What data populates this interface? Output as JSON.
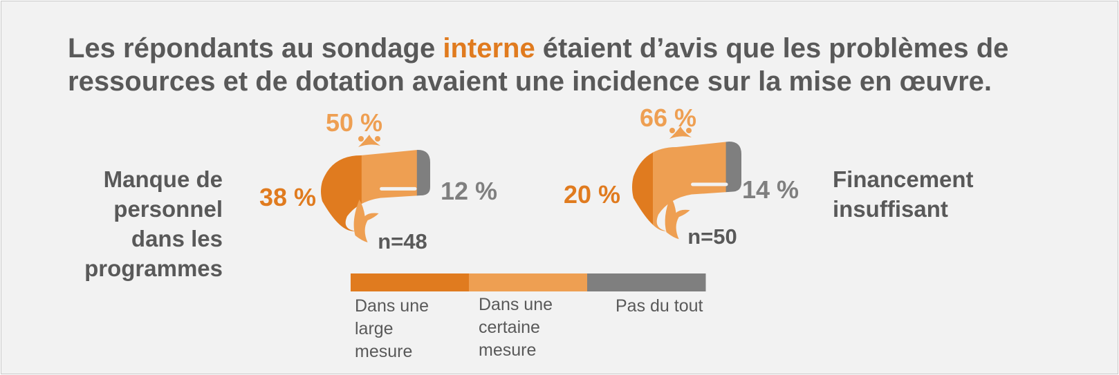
{
  "title": {
    "part1": "Les répondants au sondage ",
    "highlight": "interne",
    "part2": " étaient d’avis que les problèmes de ressources et de dotation avaient une incidence sur la mise en œuvre."
  },
  "colors": {
    "large": "#e07b1f",
    "certaine": "#ee9f52",
    "pas": "#7f7f7f",
    "text": "#595959"
  },
  "chart_data": [
    {
      "type": "bar",
      "title": "Manque de personnel dans les programmes",
      "n_label": "n=48",
      "series": [
        {
          "name": "Dans une large mesure",
          "value": 38,
          "label": "38 %"
        },
        {
          "name": "Dans une certaine mesure",
          "value": 50,
          "label": "50 %"
        },
        {
          "name": "Pas du tout",
          "value": 12,
          "label": "12 %"
        }
      ]
    },
    {
      "type": "bar",
      "title": "Financement insuffisant",
      "n_label": "n=50",
      "series": [
        {
          "name": "Dans une large mesure",
          "value": 20,
          "label": "20 %"
        },
        {
          "name": "Dans une certaine mesure",
          "value": 66,
          "label": "66 %"
        },
        {
          "name": "Pas du tout",
          "value": 14,
          "label": "14 %"
        }
      ]
    }
  ],
  "labels": {
    "left": [
      "Manque de",
      "personnel",
      "dans les",
      "programmes"
    ],
    "right": [
      "Financement",
      "insuffisant"
    ]
  },
  "legend": [
    {
      "lines": [
        "Dans une",
        "large",
        "mesure"
      ]
    },
    {
      "lines": [
        "Dans une",
        "certaine",
        "mesure"
      ]
    },
    {
      "lines": [
        "Pas du tout"
      ]
    }
  ]
}
